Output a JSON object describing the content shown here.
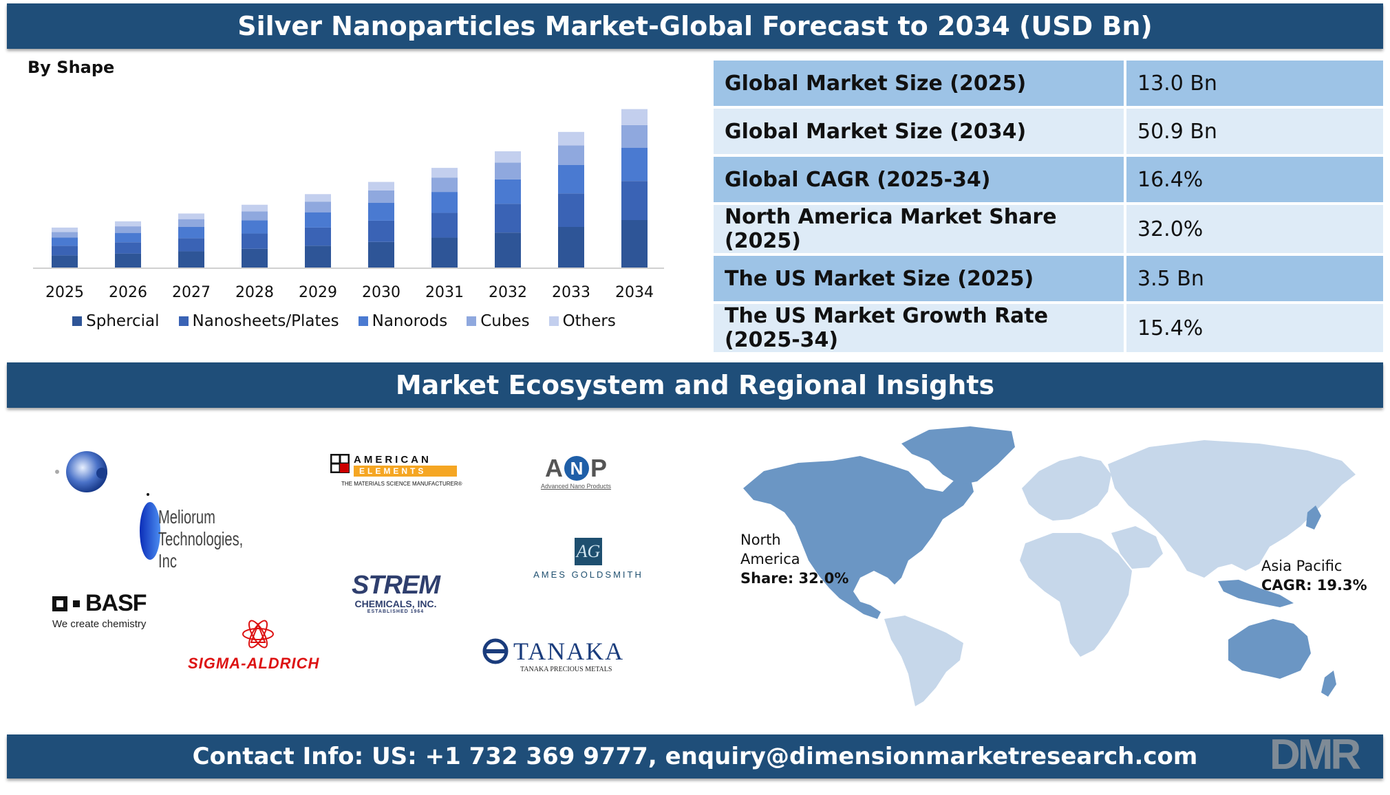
{
  "title": "Silver Nanoparticles Market-Global Forecast to 2034 (USD Bn)",
  "chart_subtitle": "By Shape",
  "chart_data": {
    "type": "bar",
    "stacked": true,
    "categories": [
      "2025",
      "2026",
      "2027",
      "2028",
      "2029",
      "2030",
      "2031",
      "2032",
      "2033",
      "2034"
    ],
    "series": [
      {
        "name": "Sphercial",
        "color": "#2e5597",
        "values": [
          4.1,
          4.7,
          5.4,
          6.2,
          7.2,
          8.4,
          9.8,
          11.4,
          13.2,
          15.4
        ]
      },
      {
        "name": "Nanosheets/Plates",
        "color": "#3a63b5",
        "values": [
          3.1,
          3.6,
          4.2,
          4.9,
          5.8,
          6.8,
          7.9,
          9.2,
          10.7,
          12.5
        ]
      },
      {
        "name": "Nanorods",
        "color": "#4a7ad1",
        "values": [
          2.6,
          3.0,
          3.6,
          4.2,
          4.9,
          5.7,
          6.7,
          7.8,
          9.1,
          10.6
        ]
      },
      {
        "name": "Cubes",
        "color": "#8fa8de",
        "values": [
          1.8,
          2.1,
          2.5,
          2.9,
          3.4,
          4.0,
          4.6,
          5.4,
          6.3,
          7.3
        ]
      },
      {
        "name": "Others",
        "color": "#c3cfee",
        "values": [
          1.4,
          1.6,
          1.8,
          2.1,
          2.4,
          2.7,
          3.1,
          3.6,
          4.3,
          5.1
        ]
      }
    ],
    "ylim": [
      0,
      55
    ],
    "grid": false,
    "legend_position": "bottom"
  },
  "stats": [
    {
      "label": "Global Market Size (2025)",
      "value": "13.0 Bn"
    },
    {
      "label": "Global Market Size (2034)",
      "value": "50.9 Bn"
    },
    {
      "label": "Global CAGR (2025-34)",
      "value": "16.4%"
    },
    {
      "label": "North America Market Share (2025)",
      "value": "32.0%"
    },
    {
      "label": "The US Market Size (2025)",
      "value": "3.5 Bn"
    },
    {
      "label": "The US Market Growth Rate (2025-34)",
      "value": "15.4%"
    }
  ],
  "ecosystem_title": "Market Ecosystem and Regional Insights",
  "logos": {
    "meliorum": "Meliorum Technologies, Inc",
    "american_elements_1": "AMERICAN",
    "american_elements_2": "ELEMENTS",
    "american_elements_tag": "THE MATERIALS SCIENCE MANUFACTURER®",
    "anp": "ANP",
    "anp_tag": "Advanced Nano Products",
    "ames": "AMES GOLDSMITH",
    "ames_mark": "AG",
    "basf": "BASF",
    "basf_tag": "We create chemistry",
    "strem": "STREM",
    "strem_tag": "CHEMICALS, INC.",
    "strem_est": "ESTABLISHED 1964",
    "sigma": "SIGMA-ALDRICH",
    "tanaka": "TANAKA",
    "tanaka_tag": "TANAKA PRECIOUS METALS"
  },
  "map_labels": {
    "north_america_1": "North",
    "north_america_2": "America",
    "north_america_3": "Share: 32.0%",
    "asia_pacific_1": "Asia Pacific",
    "asia_pacific_2": "CAGR: 19.3%"
  },
  "contact": "Contact Info: US: +1 732 369 9777, enquiry@dimensionmarketresearch.com",
  "brand_logo": "DMR",
  "colors": {
    "banner": "#1f4e79",
    "table_dark": "#9dc3e6",
    "table_light": "#deebf7",
    "map_highlight": "#6b96c4",
    "map_other": "#c6d7ea"
  }
}
